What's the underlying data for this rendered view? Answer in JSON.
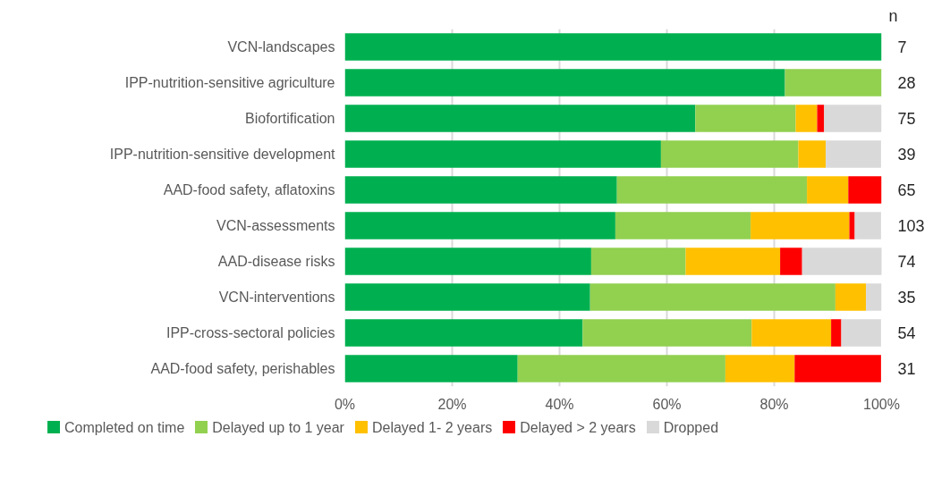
{
  "chart_data": {
    "type": "bar",
    "orientation": "horizontal",
    "stacked": true,
    "categories": [
      "VCN-landscapes",
      "IPP-nutrition-sensitive agriculture",
      "Biofortification",
      "IPP-nutrition-sensitive development",
      "AAD-food safety, aflatoxins",
      "VCN-assessments",
      "AAD-disease risks",
      "VCN-interventions",
      "IPP-cross-sectoral policies",
      "AAD-food safety, perishables"
    ],
    "series": [
      {
        "name": "Completed on time",
        "color": "#00b050",
        "values": [
          100,
          82,
          65.3,
          58.9,
          50.7,
          50.4,
          45.9,
          45.7,
          44.3,
          32.2
        ]
      },
      {
        "name": "Delayed up to 1 year",
        "color": "#92d050",
        "values": [
          0,
          18,
          18.7,
          25.6,
          35.4,
          25.2,
          17.6,
          45.7,
          31.5,
          38.7
        ]
      },
      {
        "name": "Delayed 1- 2 years",
        "color": "#ffc000",
        "values": [
          0,
          0,
          4,
          5.1,
          7.7,
          18.4,
          17.6,
          5.7,
          14.8,
          12.9
        ]
      },
      {
        "name": "Delayed > 2 years",
        "color": "#ff0000",
        "values": [
          0,
          0,
          1.3,
          0,
          6.2,
          1,
          4.1,
          0,
          1.9,
          16.1
        ]
      },
      {
        "name": "Dropped",
        "color": "#d9d9d9",
        "values": [
          0,
          0,
          10.7,
          10.3,
          0,
          4.9,
          14.9,
          2.9,
          7.4,
          0
        ]
      }
    ],
    "xlim": [
      0,
      100
    ],
    "xticks": [
      {
        "value": 0,
        "label": "0%"
      },
      {
        "value": 20,
        "label": "20%"
      },
      {
        "value": 40,
        "label": "40%"
      },
      {
        "value": 60,
        "label": "60%"
      },
      {
        "value": 80,
        "label": "80%"
      },
      {
        "value": 100,
        "label": "100%"
      }
    ],
    "grid": "x",
    "legend": "bottom",
    "annotations": [
      "n",
      "7",
      "28",
      "75",
      "39",
      "65",
      "103",
      "74",
      "35",
      "54",
      "31"
    ]
  }
}
